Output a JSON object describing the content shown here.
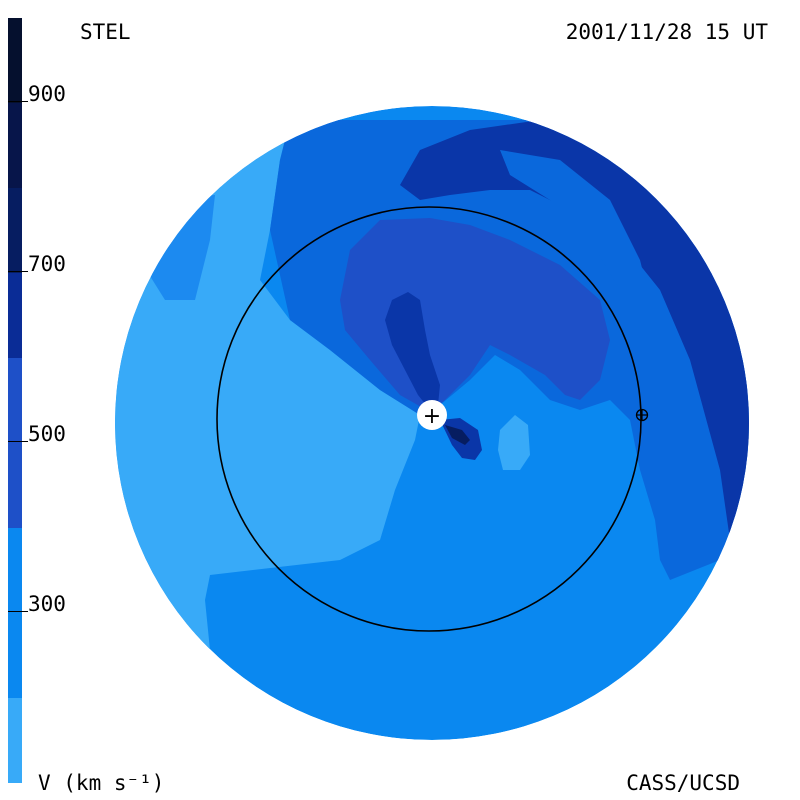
{
  "header": {
    "left": "STEL",
    "right": "2001/11/28 15 UT"
  },
  "footer": {
    "left": "V (km s⁻¹)",
    "right": "CASS/UCSD"
  },
  "colorbar": {
    "unit_label": "V (km s⁻¹)",
    "tick_labels": [
      "900",
      "700",
      "500",
      "300"
    ],
    "colors": [
      "#05102e",
      "#061d61",
      "#0a2c96",
      "#1e50c8",
      "#0a68dc",
      "#1c8af0",
      "#38aaf8",
      "#8ecff9"
    ]
  },
  "map": {
    "sun_symbol": "+",
    "earth_symbol": "earth-symbol",
    "palette": {
      "light": "#38aaf8",
      "mid": "#0a88f0",
      "medium_dark": "#0a68dc",
      "dark": "#1e50c8",
      "darker": "#0a36a8",
      "darkest": "#061d61"
    }
  }
}
